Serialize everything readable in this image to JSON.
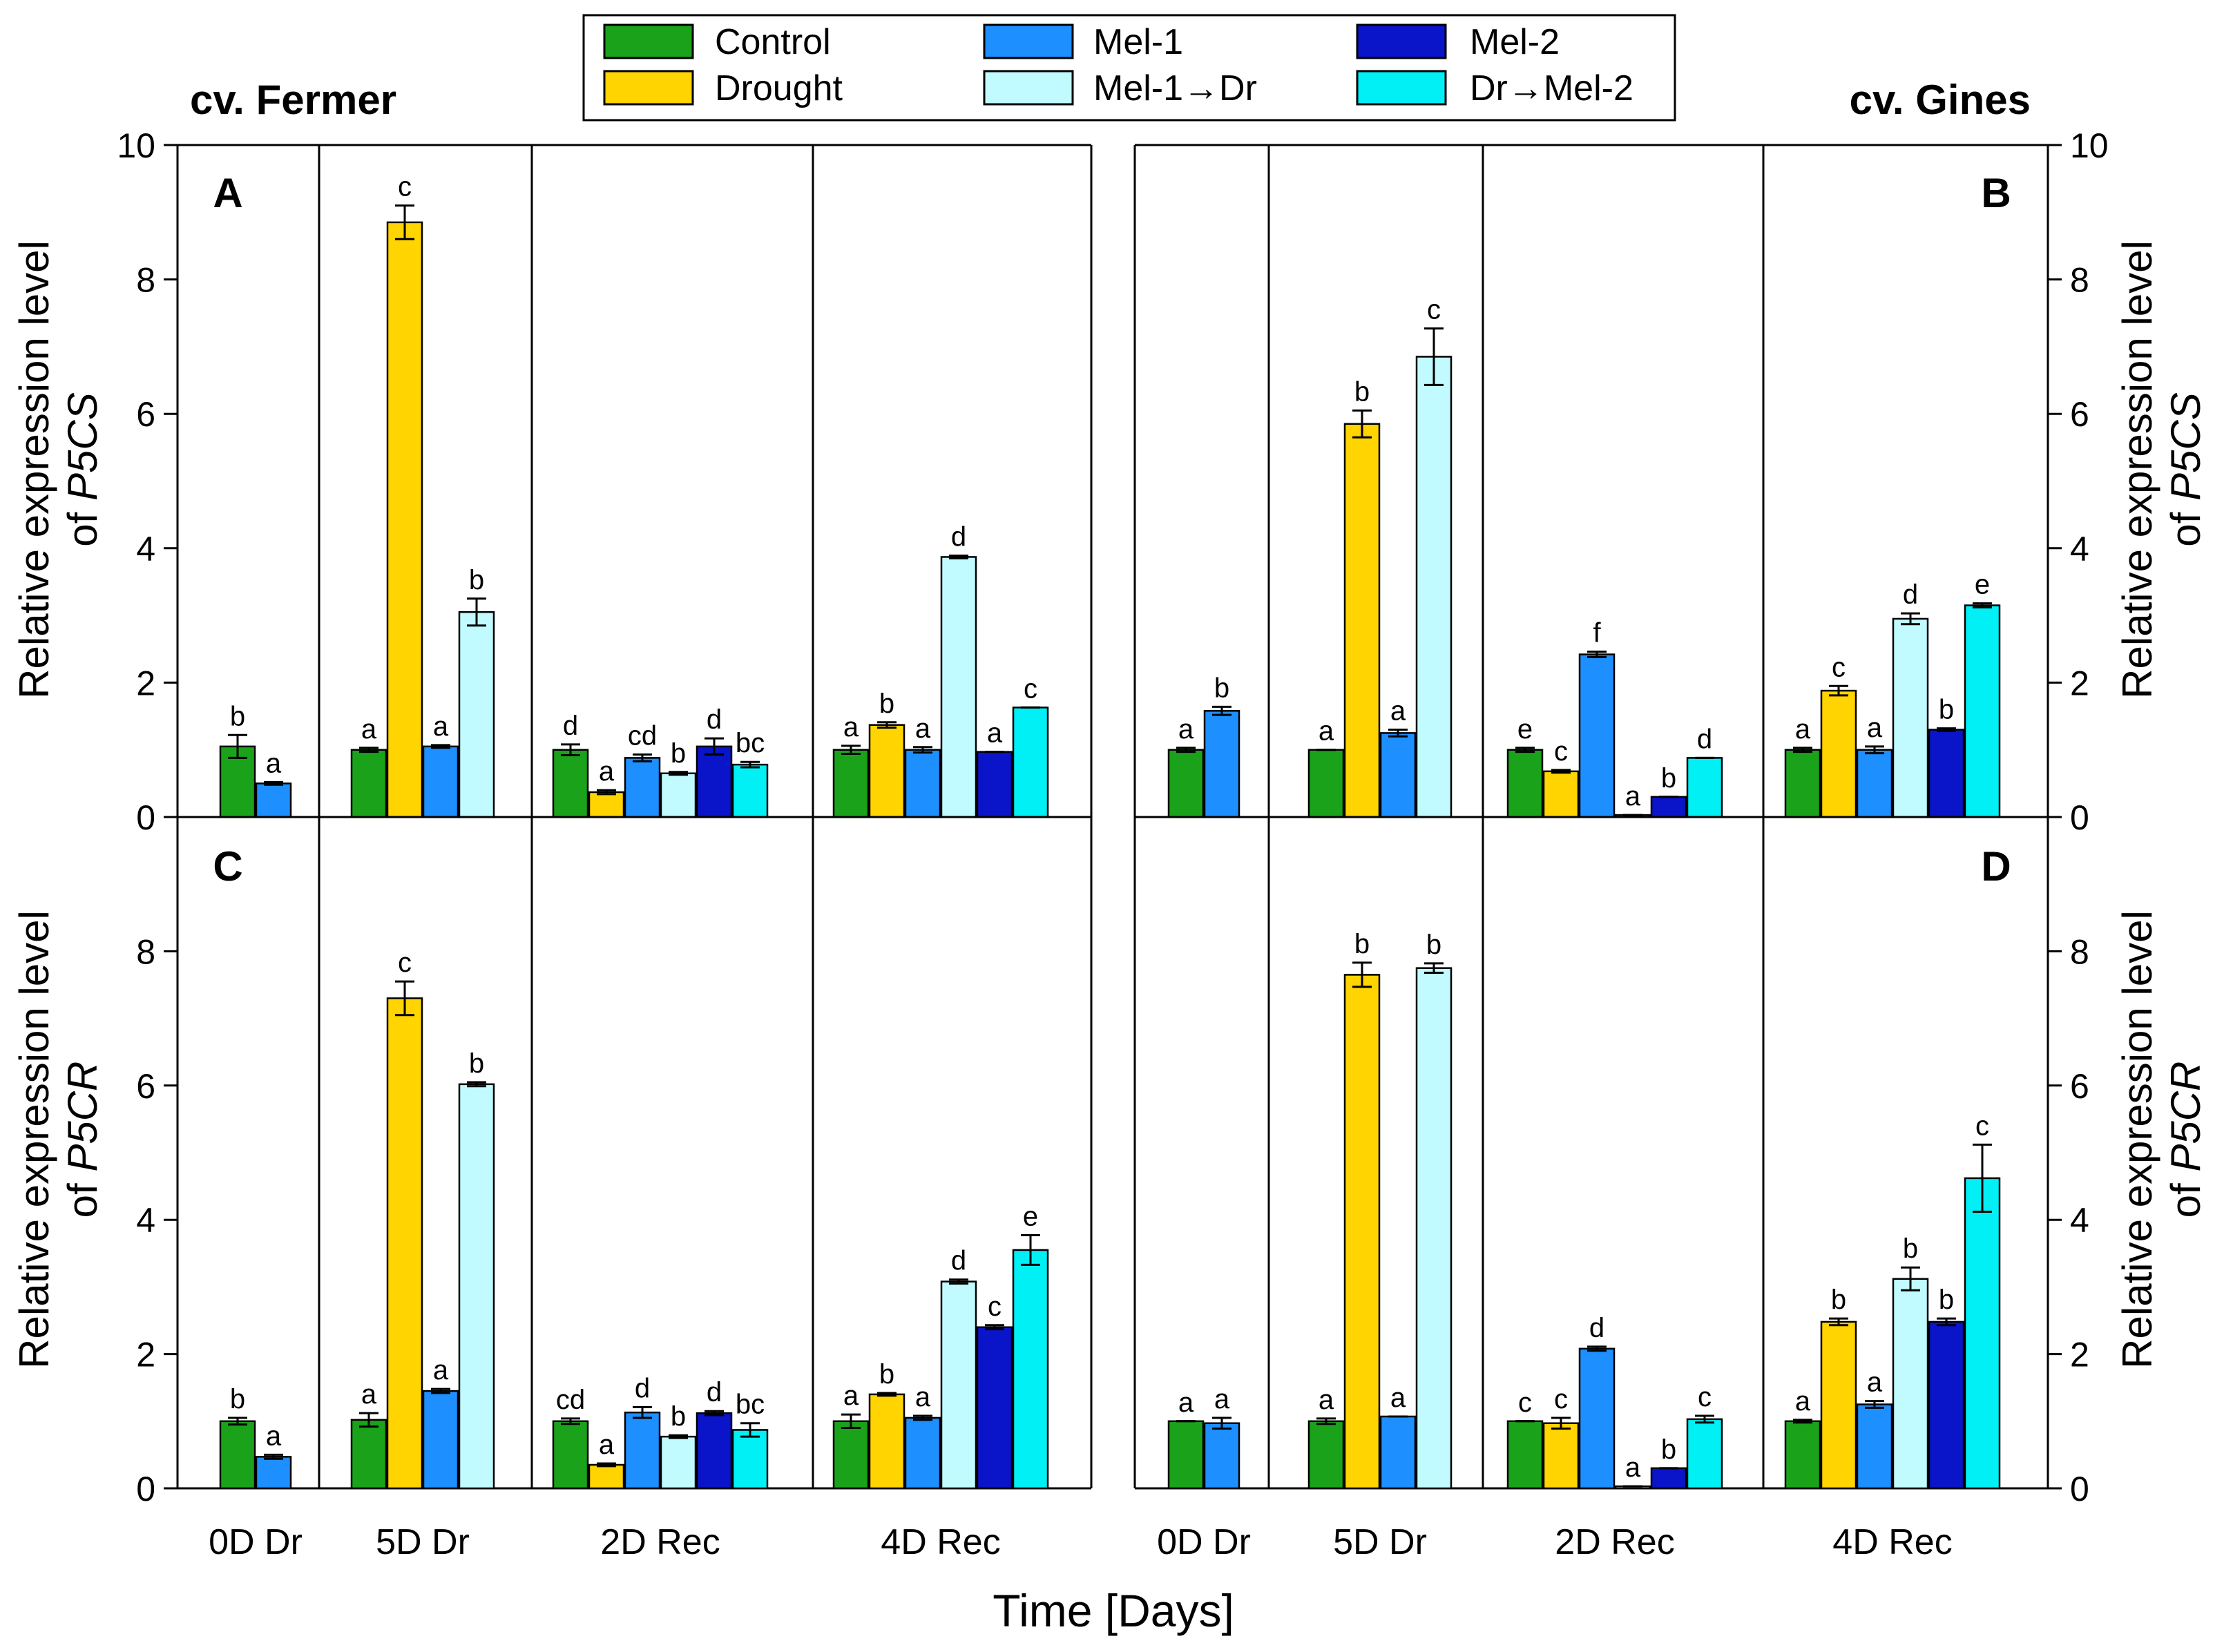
{
  "title_left": "cv. Fermer",
  "title_right": "cv. Gines",
  "xlabel": "Time [Days]",
  "ylabel_top_prefix": "Relative expression level",
  "ylabel_top_gene_of": "of",
  "ylabel_top_gene": "P5CS",
  "ylabel_bottom_prefix": "Relative expression level",
  "ylabel_bottom_gene_of": "of",
  "ylabel_bottom_gene": "P5CR",
  "legend": [
    {
      "key": "control",
      "label": "Control",
      "color": "#1aa31a"
    },
    {
      "key": "drought",
      "label": "Drought",
      "color": "#ffd400"
    },
    {
      "key": "mel1",
      "label": "Mel-1",
      "color": "#1e8fff"
    },
    {
      "key": "mel1dr",
      "label": "Mel-1→Dr",
      "color": "#c2fbff"
    },
    {
      "key": "mel2",
      "label": "Mel-2",
      "color": "#0a14c8"
    },
    {
      "key": "drmel2",
      "label": "Dr→Mel-2",
      "color": "#00f0f5"
    }
  ],
  "chart_data": [
    {
      "type": "bar",
      "panel": "A",
      "cultivar": "cv. Fermer",
      "gene": "P5CS",
      "ylim": [
        0,
        10
      ],
      "yticks": [
        0,
        2,
        4,
        6,
        8,
        10
      ],
      "categories": [
        "0D Dr",
        "5D Dr",
        "2D Rec",
        "4D Rec"
      ],
      "groups": [
        {
          "category": "0D Dr",
          "bars": [
            {
              "series": "control",
              "value": 1.05,
              "err": 0.17,
              "label": "b"
            },
            {
              "series": "mel1",
              "value": 0.5,
              "err": 0.02,
              "label": "a"
            }
          ]
        },
        {
          "category": "5D Dr",
          "bars": [
            {
              "series": "control",
              "value": 1.0,
              "err": 0.03,
              "label": "a"
            },
            {
              "series": "drought",
              "value": 8.85,
              "err": 0.25,
              "label": "c"
            },
            {
              "series": "mel1",
              "value": 1.05,
              "err": 0.02,
              "label": "a"
            },
            {
              "series": "mel1dr",
              "value": 3.05,
              "err": 0.2,
              "label": "b"
            }
          ]
        },
        {
          "category": "2D Rec",
          "bars": [
            {
              "series": "control",
              "value": 1.0,
              "err": 0.08,
              "label": "d"
            },
            {
              "series": "drought",
              "value": 0.37,
              "err": 0.03,
              "label": "a"
            },
            {
              "series": "mel1",
              "value": 0.88,
              "err": 0.05,
              "label": "cd"
            },
            {
              "series": "mel1dr",
              "value": 0.65,
              "err": 0.02,
              "label": "b"
            },
            {
              "series": "mel2",
              "value": 1.05,
              "err": 0.12,
              "label": "d"
            },
            {
              "series": "drmel2",
              "value": 0.78,
              "err": 0.04,
              "label": "bc"
            }
          ]
        },
        {
          "category": "4D Rec",
          "bars": [
            {
              "series": "control",
              "value": 1.0,
              "err": 0.06,
              "label": "a"
            },
            {
              "series": "drought",
              "value": 1.37,
              "err": 0.04,
              "label": "b"
            },
            {
              "series": "mel1",
              "value": 1.0,
              "err": 0.04,
              "label": "a"
            },
            {
              "series": "mel1dr",
              "value": 3.87,
              "err": 0.02,
              "label": "d"
            },
            {
              "series": "mel2",
              "value": 0.97,
              "err": 0.0,
              "label": "a"
            },
            {
              "series": "drmel2",
              "value": 1.63,
              "err": 0.0,
              "label": "c"
            }
          ]
        }
      ]
    },
    {
      "type": "bar",
      "panel": "B",
      "cultivar": "cv. Gines",
      "gene": "P5CS",
      "ylim": [
        0,
        10
      ],
      "yticks": [
        0,
        2,
        4,
        6,
        8,
        10
      ],
      "categories": [
        "0D Dr",
        "5D Dr",
        "2D Rec",
        "4D Rec"
      ],
      "groups": [
        {
          "category": "0D Dr",
          "bars": [
            {
              "series": "control",
              "value": 1.0,
              "err": 0.03,
              "label": "a"
            },
            {
              "series": "mel1",
              "value": 1.58,
              "err": 0.06,
              "label": "b"
            }
          ]
        },
        {
          "category": "5D Dr",
          "bars": [
            {
              "series": "control",
              "value": 1.0,
              "err": 0.0,
              "label": "a"
            },
            {
              "series": "drought",
              "value": 5.85,
              "err": 0.2,
              "label": "b"
            },
            {
              "series": "mel1",
              "value": 1.25,
              "err": 0.05,
              "label": "a"
            },
            {
              "series": "mel1dr",
              "value": 6.85,
              "err": 0.42,
              "label": "c"
            }
          ]
        },
        {
          "category": "2D Rec",
          "bars": [
            {
              "series": "control",
              "value": 1.0,
              "err": 0.03,
              "label": "e"
            },
            {
              "series": "drought",
              "value": 0.68,
              "err": 0.02,
              "label": "c"
            },
            {
              "series": "mel1",
              "value": 2.42,
              "err": 0.04,
              "label": "f"
            },
            {
              "series": "mel1dr",
              "value": 0.03,
              "err": 0.0,
              "label": "a"
            },
            {
              "series": "mel2",
              "value": 0.3,
              "err": 0.0,
              "label": "b"
            },
            {
              "series": "drmel2",
              "value": 0.88,
              "err": 0.0,
              "label": "d"
            }
          ]
        },
        {
          "category": "4D Rec",
          "bars": [
            {
              "series": "control",
              "value": 1.0,
              "err": 0.03,
              "label": "a"
            },
            {
              "series": "drought",
              "value": 1.88,
              "err": 0.07,
              "label": "c"
            },
            {
              "series": "mel1",
              "value": 1.0,
              "err": 0.05,
              "label": "a"
            },
            {
              "series": "mel1dr",
              "value": 2.95,
              "err": 0.08,
              "label": "d"
            },
            {
              "series": "mel2",
              "value": 1.3,
              "err": 0.02,
              "label": "b"
            },
            {
              "series": "drmel2",
              "value": 3.15,
              "err": 0.03,
              "label": "e"
            }
          ]
        }
      ]
    },
    {
      "type": "bar",
      "panel": "C",
      "cultivar": "cv. Fermer",
      "gene": "P5CR",
      "ylim": [
        0,
        10
      ],
      "yticks": [
        0,
        2,
        4,
        6,
        8
      ],
      "categories": [
        "0D Dr",
        "5D Dr",
        "2D Rec",
        "4D Rec"
      ],
      "groups": [
        {
          "category": "0D Dr",
          "bars": [
            {
              "series": "control",
              "value": 1.0,
              "err": 0.05,
              "label": "b"
            },
            {
              "series": "mel1",
              "value": 0.47,
              "err": 0.03,
              "label": "a"
            }
          ]
        },
        {
          "category": "5D Dr",
          "bars": [
            {
              "series": "control",
              "value": 1.02,
              "err": 0.1,
              "label": "a"
            },
            {
              "series": "drought",
              "value": 7.3,
              "err": 0.25,
              "label": "c"
            },
            {
              "series": "mel1",
              "value": 1.45,
              "err": 0.03,
              "label": "a"
            },
            {
              "series": "mel1dr",
              "value": 6.02,
              "err": 0.03,
              "label": "b"
            }
          ]
        },
        {
          "category": "2D Rec",
          "bars": [
            {
              "series": "control",
              "value": 1.0,
              "err": 0.04,
              "label": "cd"
            },
            {
              "series": "drought",
              "value": 0.35,
              "err": 0.02,
              "label": "a"
            },
            {
              "series": "mel1",
              "value": 1.13,
              "err": 0.08,
              "label": "d"
            },
            {
              "series": "mel1dr",
              "value": 0.77,
              "err": 0.02,
              "label": "b"
            },
            {
              "series": "mel2",
              "value": 1.12,
              "err": 0.03,
              "label": "d"
            },
            {
              "series": "drmel2",
              "value": 0.87,
              "err": 0.1,
              "label": "bc"
            }
          ]
        },
        {
          "category": "4D Rec",
          "bars": [
            {
              "series": "control",
              "value": 1.0,
              "err": 0.1,
              "label": "a"
            },
            {
              "series": "drought",
              "value": 1.4,
              "err": 0.02,
              "label": "b"
            },
            {
              "series": "mel1",
              "value": 1.05,
              "err": 0.03,
              "label": "a"
            },
            {
              "series": "mel1dr",
              "value": 3.08,
              "err": 0.03,
              "label": "d"
            },
            {
              "series": "mel2",
              "value": 2.4,
              "err": 0.03,
              "label": "c"
            },
            {
              "series": "drmel2",
              "value": 3.55,
              "err": 0.22,
              "label": "e"
            }
          ]
        }
      ]
    },
    {
      "type": "bar",
      "panel": "D",
      "cultivar": "cv. Gines",
      "gene": "P5CR",
      "ylim": [
        0,
        10
      ],
      "yticks": [
        0,
        2,
        4,
        6,
        8
      ],
      "categories": [
        "0D Dr",
        "5D Dr",
        "2D Rec",
        "4D Rec"
      ],
      "groups": [
        {
          "category": "0D Dr",
          "bars": [
            {
              "series": "control",
              "value": 1.0,
              "err": 0.0,
              "label": "a"
            },
            {
              "series": "mel1",
              "value": 0.97,
              "err": 0.08,
              "label": "a"
            }
          ]
        },
        {
          "category": "5D Dr",
          "bars": [
            {
              "series": "control",
              "value": 1.0,
              "err": 0.04,
              "label": "a"
            },
            {
              "series": "drought",
              "value": 7.65,
              "err": 0.18,
              "label": "b"
            },
            {
              "series": "mel1",
              "value": 1.07,
              "err": 0.0,
              "label": "a"
            },
            {
              "series": "mel1dr",
              "value": 7.75,
              "err": 0.07,
              "label": "b"
            }
          ]
        },
        {
          "category": "2D Rec",
          "bars": [
            {
              "series": "control",
              "value": 1.0,
              "err": 0.0,
              "label": "c"
            },
            {
              "series": "drought",
              "value": 0.97,
              "err": 0.08,
              "label": "c"
            },
            {
              "series": "mel1",
              "value": 2.08,
              "err": 0.03,
              "label": "d"
            },
            {
              "series": "mel1dr",
              "value": 0.03,
              "err": 0.0,
              "label": "a"
            },
            {
              "series": "mel2",
              "value": 0.3,
              "err": 0.0,
              "label": "b"
            },
            {
              "series": "drmel2",
              "value": 1.03,
              "err": 0.05,
              "label": "c"
            }
          ]
        },
        {
          "category": "4D Rec",
          "bars": [
            {
              "series": "control",
              "value": 1.0,
              "err": 0.02,
              "label": "a"
            },
            {
              "series": "drought",
              "value": 2.48,
              "err": 0.05,
              "label": "b"
            },
            {
              "series": "mel1",
              "value": 1.25,
              "err": 0.05,
              "label": "a"
            },
            {
              "series": "mel1dr",
              "value": 3.12,
              "err": 0.17,
              "label": "b"
            },
            {
              "series": "mel2",
              "value": 2.48,
              "err": 0.05,
              "label": "b"
            },
            {
              "series": "drmel2",
              "value": 4.62,
              "err": 0.5,
              "label": "c"
            }
          ]
        }
      ]
    }
  ]
}
